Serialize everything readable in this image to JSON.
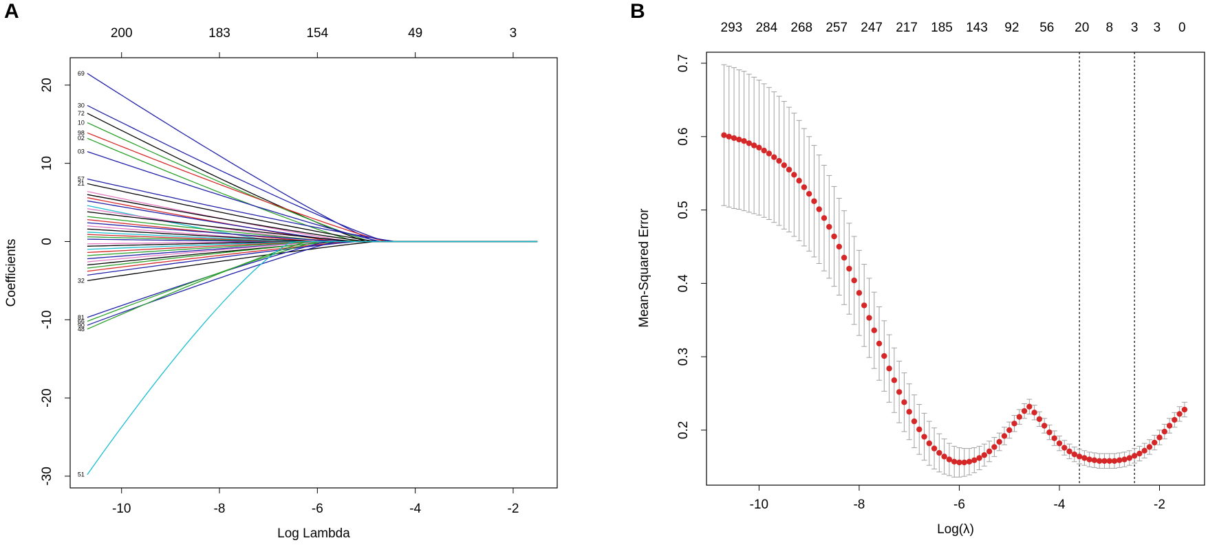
{
  "chart_data": [
    {
      "panel": "A",
      "type": "line",
      "title": "",
      "xlabel": "Log Lambda",
      "ylabel": "Coefficients",
      "xlim": [
        -11.05,
        -1.1
      ],
      "ylim": [
        -31.5,
        23.5
      ],
      "x_ticks": [
        -10,
        -8,
        -6,
        -4,
        -2
      ],
      "y_ticks": [
        20,
        10,
        0,
        -10,
        -20,
        -30
      ],
      "top_axis": {
        "positions": [
          -10,
          -8,
          -6,
          -4,
          -2
        ],
        "labels": [
          "200",
          "183",
          "154",
          "49",
          "3"
        ]
      },
      "grid": false,
      "x_start": -10.7,
      "x_end": -1.5,
      "end_labels": [
        {
          "label": "69",
          "y": 21.5
        },
        {
          "label": "30",
          "y": 17.4
        },
        {
          "label": "72",
          "y": 16.4
        },
        {
          "label": "10",
          "y": 15.2
        },
        {
          "label": "98",
          "y": 13.9
        },
        {
          "label": "02",
          "y": 13.2
        },
        {
          "label": "03",
          "y": 11.5
        },
        {
          "label": "57",
          "y": 8.0
        },
        {
          "label": "21",
          "y": 7.4
        },
        {
          "label": "51",
          "y": -29.8
        },
        {
          "label": "81",
          "y": -9.7
        },
        {
          "label": "66",
          "y": -10.2
        },
        {
          "label": "90",
          "y": -10.7
        },
        {
          "label": "48",
          "y": -11.2
        },
        {
          "label": "32",
          "y": -5.0
        }
      ],
      "series": [
        {
          "color": "#1f1fa8",
          "start": 21.5,
          "curve": "linear",
          "fade": -4.8
        },
        {
          "color": "#1f1fa8",
          "start": 17.4,
          "curve": "linear",
          "fade": -4.6
        },
        {
          "color": "#000000",
          "start": 16.4,
          "curve": "linear",
          "fade": -5.0
        },
        {
          "color": "#2ca02c",
          "start": 15.2,
          "curve": "linear",
          "fade": -4.9
        },
        {
          "color": "#d62728",
          "start": 13.9,
          "curve": "linear",
          "fade": -4.6
        },
        {
          "color": "#2ca02c",
          "start": 13.2,
          "curve": "linear",
          "fade": -5.2
        },
        {
          "color": "#1f1fa8",
          "start": 11.5,
          "curve": "linear",
          "fade": -4.7
        },
        {
          "color": "#1f1fa8",
          "start": 8.0,
          "curve": "linear",
          "fade": -4.4
        },
        {
          "color": "#000000",
          "start": 7.4,
          "curve": "linear",
          "fade": -4.8
        },
        {
          "color": "#e377c2",
          "start": 6.4,
          "curve": "linear",
          "fade": -5.3
        },
        {
          "color": "#000000",
          "start": 6.0,
          "curve": "linear",
          "fade": -5.0
        },
        {
          "color": "#d62728",
          "start": 5.6,
          "curve": "linear",
          "fade": -5.6
        },
        {
          "color": "#1f1fa8",
          "start": 5.2,
          "curve": "linear",
          "fade": -5.4
        },
        {
          "color": "#17becf",
          "start": 4.6,
          "curve": "linear",
          "fade": -6.8
        },
        {
          "color": "#e377c2",
          "start": 4.2,
          "curve": "linear",
          "fade": -5.8
        },
        {
          "color": "#000000",
          "start": 3.8,
          "curve": "linear",
          "fade": -5.2
        },
        {
          "color": "#2ca02c",
          "start": 3.2,
          "curve": "linear",
          "fade": -5.6
        },
        {
          "color": "#d62728",
          "start": 2.8,
          "curve": "linear",
          "fade": -6.0
        },
        {
          "color": "#1f1fa8",
          "start": 2.4,
          "curve": "linear",
          "fade": -5.5
        },
        {
          "color": "#e377c2",
          "start": 2.0,
          "curve": "linear",
          "fade": -6.2
        },
        {
          "color": "#000000",
          "start": 1.6,
          "curve": "linear",
          "fade": -6.0
        },
        {
          "color": "#17becf",
          "start": 1.2,
          "curve": "linear",
          "fade": -6.3
        },
        {
          "color": "#d62728",
          "start": 0.9,
          "curve": "linear",
          "fade": -6.5
        },
        {
          "color": "#2ca02c",
          "start": 0.6,
          "curve": "linear",
          "fade": -6.6
        },
        {
          "color": "#1f1fa8",
          "start": 0.3,
          "curve": "linear",
          "fade": -6.8
        },
        {
          "color": "#e377c2",
          "start": -0.3,
          "curve": "linear",
          "fade": -6.6
        },
        {
          "color": "#000000",
          "start": -0.6,
          "curve": "linear",
          "fade": -6.4
        },
        {
          "color": "#17becf",
          "start": -1.0,
          "curve": "linear",
          "fade": -6.2
        },
        {
          "color": "#d62728",
          "start": -1.4,
          "curve": "linear",
          "fade": -6.0
        },
        {
          "color": "#2ca02c",
          "start": -1.8,
          "curve": "linear",
          "fade": -5.9
        },
        {
          "color": "#1f1fa8",
          "start": -2.2,
          "curve": "linear",
          "fade": -5.7
        },
        {
          "color": "#e377c2",
          "start": -2.6,
          "curve": "linear",
          "fade": -5.8
        },
        {
          "color": "#000000",
          "start": -3.0,
          "curve": "linear",
          "fade": -5.5
        },
        {
          "color": "#2ca02c",
          "start": -3.4,
          "curve": "linear",
          "fade": -5.6
        },
        {
          "color": "#d62728",
          "start": -3.8,
          "curve": "linear",
          "fade": -5.3
        },
        {
          "color": "#1f1fa8",
          "start": -4.3,
          "curve": "linear",
          "fade": -5.2
        },
        {
          "color": "#000000",
          "start": -5.0,
          "curve": "linear",
          "fade": -4.8
        },
        {
          "color": "#1f1fa8",
          "start": -9.7,
          "curve": "linear",
          "fade": -5.8
        },
        {
          "color": "#2ca02c",
          "start": -10.2,
          "curve": "linear",
          "fade": -6.0
        },
        {
          "color": "#1f1fa8",
          "start": -10.7,
          "curve": "linear",
          "fade": -5.6
        },
        {
          "color": "#2ca02c",
          "start": -11.2,
          "curve": "linear",
          "fade": -6.2
        },
        {
          "color": "#17becf",
          "start": -29.8,
          "curve": "convex",
          "fade": -6.5
        }
      ]
    },
    {
      "panel": "B",
      "type": "scatter",
      "title": "",
      "xlabel": "Log(λ)",
      "ylabel": "Mean-Squared Error",
      "xlim": [
        -11.05,
        -1.1
      ],
      "ylim": [
        0.125,
        0.715
      ],
      "x_ticks": [
        -10,
        -8,
        -6,
        -4,
        -2
      ],
      "y_ticks": [
        0.2,
        0.3,
        0.4,
        0.5,
        0.6,
        0.7
      ],
      "top_axis": {
        "positions": [
          -10.55,
          -9.85,
          -9.15,
          -8.45,
          -7.75,
          -7.05,
          -6.35,
          -5.65,
          -4.95,
          -4.25,
          -3.55,
          -3.0,
          -2.5,
          -2.05,
          -1.55
        ],
        "labels": [
          "293",
          "284",
          "268",
          "257",
          "247",
          "217",
          "185",
          "143",
          "92",
          "56",
          "20",
          "8",
          "3",
          "3",
          "0"
        ]
      },
      "grid": false,
      "vlines": [
        -3.6,
        -2.5
      ],
      "point_color": "#d62728",
      "errorbar_color": "#a0a0a0",
      "x": [
        -10.7,
        -10.6,
        -10.5,
        -10.4,
        -10.3,
        -10.2,
        -10.1,
        -10.0,
        -9.9,
        -9.8,
        -9.7,
        -9.6,
        -9.5,
        -9.4,
        -9.3,
        -9.2,
        -9.1,
        -9.0,
        -8.9,
        -8.8,
        -8.7,
        -8.6,
        -8.5,
        -8.4,
        -8.3,
        -8.2,
        -8.1,
        -8.0,
        -7.9,
        -7.8,
        -7.7,
        -7.6,
        -7.5,
        -7.4,
        -7.3,
        -7.2,
        -7.1,
        -7.0,
        -6.9,
        -6.8,
        -6.7,
        -6.6,
        -6.5,
        -6.4,
        -6.3,
        -6.2,
        -6.1,
        -6.0,
        -5.9,
        -5.8,
        -5.7,
        -5.6,
        -5.5,
        -5.4,
        -5.3,
        -5.2,
        -5.1,
        -5.0,
        -4.9,
        -4.8,
        -4.7,
        -4.6,
        -4.5,
        -4.4,
        -4.3,
        -4.2,
        -4.1,
        -4.0,
        -3.9,
        -3.8,
        -3.7,
        -3.6,
        -3.5,
        -3.4,
        -3.3,
        -3.2,
        -3.1,
        -3.0,
        -2.9,
        -2.8,
        -2.7,
        -2.6,
        -2.5,
        -2.4,
        -2.3,
        -2.2,
        -2.1,
        -2.0,
        -1.9,
        -1.8,
        -1.7,
        -1.6,
        -1.5
      ],
      "y": [
        0.602,
        0.6,
        0.598,
        0.596,
        0.594,
        0.591,
        0.588,
        0.585,
        0.581,
        0.577,
        0.572,
        0.567,
        0.561,
        0.555,
        0.548,
        0.54,
        0.531,
        0.522,
        0.512,
        0.501,
        0.489,
        0.477,
        0.464,
        0.45,
        0.435,
        0.42,
        0.404,
        0.387,
        0.37,
        0.353,
        0.336,
        0.318,
        0.301,
        0.284,
        0.268,
        0.252,
        0.238,
        0.225,
        0.212,
        0.201,
        0.191,
        0.182,
        0.175,
        0.169,
        0.164,
        0.16,
        0.157,
        0.156,
        0.156,
        0.157,
        0.159,
        0.162,
        0.166,
        0.171,
        0.177,
        0.184,
        0.192,
        0.2,
        0.209,
        0.218,
        0.226,
        0.232,
        0.224,
        0.215,
        0.206,
        0.197,
        0.189,
        0.182,
        0.176,
        0.171,
        0.167,
        0.164,
        0.162,
        0.16,
        0.159,
        0.158,
        0.158,
        0.158,
        0.158,
        0.159,
        0.16,
        0.162,
        0.165,
        0.168,
        0.172,
        0.177,
        0.183,
        0.19,
        0.198,
        0.206,
        0.214,
        0.222,
        0.228
      ],
      "err": [
        0.096,
        0.096,
        0.096,
        0.095,
        0.095,
        0.094,
        0.093,
        0.092,
        0.091,
        0.09,
        0.089,
        0.088,
        0.087,
        0.085,
        0.084,
        0.082,
        0.08,
        0.078,
        0.076,
        0.074,
        0.072,
        0.07,
        0.068,
        0.066,
        0.064,
        0.062,
        0.06,
        0.058,
        0.056,
        0.054,
        0.052,
        0.05,
        0.048,
        0.046,
        0.044,
        0.042,
        0.04,
        0.038,
        0.036,
        0.034,
        0.032,
        0.03,
        0.028,
        0.026,
        0.024,
        0.022,
        0.021,
        0.02,
        0.019,
        0.018,
        0.017,
        0.016,
        0.015,
        0.014,
        0.013,
        0.012,
        0.012,
        0.011,
        0.011,
        0.01,
        0.01,
        0.01,
        0.01,
        0.01,
        0.01,
        0.01,
        0.01,
        0.01,
        0.01,
        0.01,
        0.01,
        0.01,
        0.01,
        0.01,
        0.01,
        0.01,
        0.01,
        0.01,
        0.01,
        0.01,
        0.01,
        0.01,
        0.01,
        0.01,
        0.01,
        0.01,
        0.01,
        0.01,
        0.01,
        0.01,
        0.01,
        0.01,
        0.01
      ]
    }
  ]
}
